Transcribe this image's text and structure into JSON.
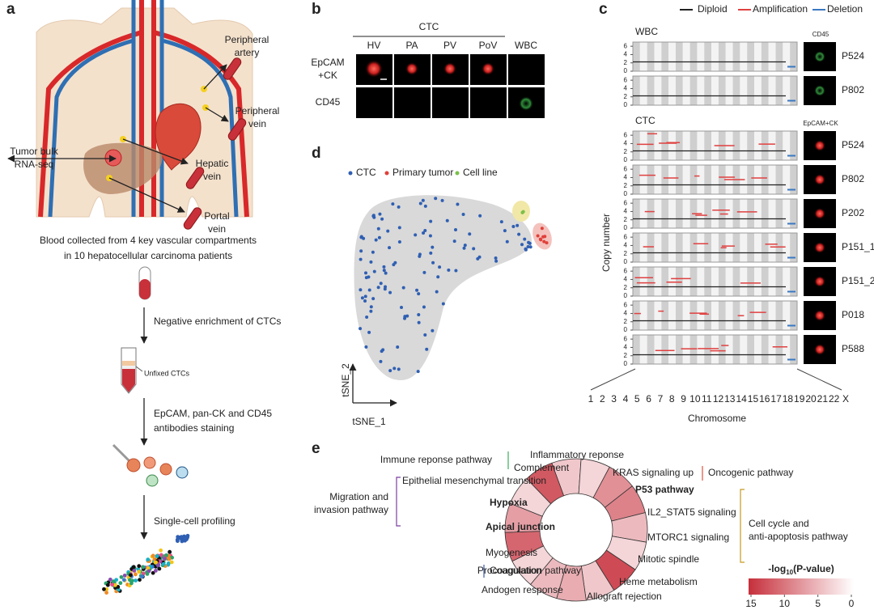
{
  "a": {
    "label": "a",
    "sites": [
      [
        "Peripheral",
        "artery"
      ],
      [
        "Peripheral",
        "vein"
      ],
      [
        "Hepatic",
        "vein"
      ],
      [
        "Portal",
        "vein"
      ]
    ],
    "bulk": [
      "Tumor bulk",
      "RNA-seq"
    ],
    "caption": [
      "Blood collected from 4 key vascular compartments",
      "in 10 hepatocellular carcinoma patients"
    ],
    "steps": [
      [
        "Negative enrichment of CTCs"
      ],
      [
        "EpCAM, pan-CK and CD45",
        "antibodies staining"
      ],
      [
        "Single-cell profiling"
      ]
    ],
    "tube_label": "Unfixed CTCs"
  },
  "b": {
    "label": "b",
    "group": "CTC",
    "columns": [
      "HV",
      "PA",
      "PV",
      "PoV",
      "WBC"
    ],
    "rows": [
      {
        "lines": [
          "EpCAM",
          "+CK"
        ],
        "color": "#d62728"
      },
      {
        "lines": [
          "CD45"
        ],
        "color": "#3a9a3a"
      }
    ]
  },
  "c": {
    "label": "c",
    "legend": [
      {
        "name": "Diploid",
        "color": "#222222"
      },
      {
        "name": "Amplification",
        "color": "#e04040"
      },
      {
        "name": "Deletion",
        "color": "#3a78c2"
      }
    ],
    "sections": [
      {
        "name": "WBC",
        "stain": "CD45",
        "stain_color": "#3a9a3a",
        "samples": [
          "P524",
          "P802"
        ]
      },
      {
        "name": "CTC",
        "stain": "EpCAM+CK",
        "stain_color": "#d62728",
        "samples": [
          "P524",
          "P802",
          "P202",
          "P151_1",
          "P151_2",
          "P018",
          "P588"
        ]
      }
    ],
    "ylabel": "Copy number",
    "ylim": [
      0,
      7
    ],
    "yticks": [
      0,
      2,
      4,
      6
    ],
    "chromosomes": [
      "1",
      "2",
      "3",
      "4",
      "5",
      "6",
      "7",
      "8",
      "9",
      "10",
      "11",
      "12",
      "13",
      "14",
      "15",
      "16",
      "17",
      "18",
      "19",
      "20",
      "21",
      "22",
      "X"
    ],
    "xlabel": "Chromosome"
  },
  "d": {
    "label": "d",
    "legend": [
      {
        "name": "CTC",
        "color": "#2f5fb3"
      },
      {
        "name": "Primary tumor",
        "color": "#e0403a"
      },
      {
        "name": "Cell line",
        "color": "#7cc04a"
      }
    ],
    "xlabel": "tSNE_1",
    "ylabel": "tSNE_2"
  },
  "e": {
    "label": "e",
    "segments": [
      {
        "label": "Inflammatory reponse",
        "value": 4,
        "color": "#3dae5a"
      },
      {
        "label": "KRAS signaling up",
        "value": 3,
        "color": "#e0533a"
      },
      {
        "label": "P53 pathway",
        "value": 8,
        "color": "#c49a22",
        "bold": true
      },
      {
        "label": "IL2_STAT5 signaling",
        "value": 9,
        "color": "#c49a22"
      },
      {
        "label": "MTORC1 signaling",
        "value": 5,
        "color": "#c49a22"
      },
      {
        "label": "Mitotic spindle",
        "value": 3,
        "color": "#c49a22"
      },
      {
        "label": "Heme metabolism",
        "value": 13,
        "color": "#222222"
      },
      {
        "label": "Allograft rejection",
        "value": 4,
        "color": "#222222"
      },
      {
        "label": "Andogen response",
        "value": 6,
        "color": "#222222"
      },
      {
        "label": "Coagulation",
        "value": 5,
        "color": "#3a5ca8"
      },
      {
        "label": "Myogenesis",
        "value": 3,
        "color": "#222222"
      },
      {
        "label": "Apical junction",
        "value": 11,
        "color": "#7a3fa0",
        "bold": true
      },
      {
        "label": "Hypoxia",
        "value": 7,
        "color": "#7a3fa0",
        "bold": true
      },
      {
        "label": "Epithelial mesenchymal transition",
        "value": 3,
        "color": "#7a3fa0"
      },
      {
        "label": "Complement",
        "value": 12,
        "color": "#3dae5a"
      }
    ],
    "groups": [
      {
        "lines": [
          "Immune reponse pathway"
        ],
        "color": "#3dae5a"
      },
      {
        "lines": [
          "Oncogenic pathway"
        ],
        "color": "#e0533a"
      },
      {
        "lines": [
          "Cell cycle and",
          "anti-apoptosis pathway"
        ],
        "color": "#c49a22"
      },
      {
        "lines": [
          "Procoagulation pathway"
        ],
        "color": "#3a5ca8"
      },
      {
        "lines": [
          "Migration and",
          "invasion pathway"
        ],
        "color": "#7a3fa0"
      }
    ],
    "colorbar": {
      "title": {
        "prefix": "-log",
        "sub": "10",
        "suffix": "(P-value)"
      },
      "lim": [
        15,
        0
      ],
      "ticks": [
        15,
        10,
        5,
        0
      ],
      "colors": [
        "#c62f3b",
        "#ffffff"
      ]
    }
  }
}
